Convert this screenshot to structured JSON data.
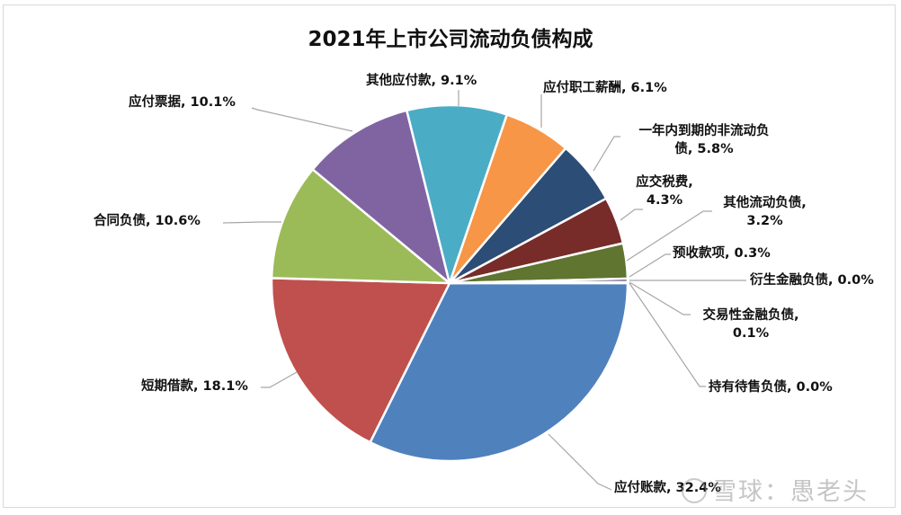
{
  "chart_data": {
    "type": "pie",
    "title": "2021年上市公司流动负债构成",
    "start_angle_deg": 0,
    "direction": "clockwise",
    "slices": [
      {
        "label": "应付账款",
        "value": 32.4,
        "color": "#4f81bd",
        "display": "应付账款, 32.4%"
      },
      {
        "label": "短期借款",
        "value": 18.1,
        "color": "#c0504d",
        "display": "短期借款, 18.1%"
      },
      {
        "label": "合同负债",
        "value": 10.6,
        "color": "#9bbb59",
        "display": "合同负债, 10.6%"
      },
      {
        "label": "应付票据",
        "value": 10.1,
        "color": "#8064a2",
        "display": "应付票据, 10.1%"
      },
      {
        "label": "其他应付款",
        "value": 9.1,
        "color": "#4bacc6",
        "display": "其他应付款, 9.1%"
      },
      {
        "label": "应付职工薪酬",
        "value": 6.1,
        "color": "#f79646",
        "display": "应付职工薪酬, 6.1%"
      },
      {
        "label": "一年内到期的非流动负债",
        "value": 5.8,
        "color": "#2c4d75",
        "display": "一年内到期的非流动负债, 5.8%"
      },
      {
        "label": "应交税费",
        "value": 4.3,
        "color": "#772c2a",
        "display": "应交税费, 4.3%"
      },
      {
        "label": "其他流动负债",
        "value": 3.2,
        "color": "#5f7530",
        "display": "其他流动负债, 3.2%"
      },
      {
        "label": "预收款项",
        "value": 0.3,
        "color": "#4d3b62",
        "display": "预收款项, 0.3%"
      },
      {
        "label": "衍生金融负债",
        "value": 0.0,
        "color": "#276a7c",
        "display": "衍生金融负债, 0.0%"
      },
      {
        "label": "交易性金融负债",
        "value": 0.1,
        "color": "#b65708",
        "display": "交易性金融负债, 0.1%"
      },
      {
        "label": "持有待售负债",
        "value": 0.0,
        "color": "#729aca",
        "display": "持有待售负债, 0.0%"
      }
    ],
    "legend": "none",
    "data_labels": "category name, percentage with leader lines"
  },
  "labels": {
    "yingfu_zhangkuan": "应付账款, 32.4%",
    "duanqi_jiekuan": "短期借款, 18.1%",
    "hetong_fuzhai": "合同负债, 10.6%",
    "yingfu_piaoju": "应付票据, 10.1%",
    "qita_yingfukuan": "其他应付款, 9.1%",
    "zhigong_xinchou": "应付职工薪酬, 6.1%",
    "yinian_line1": "一年内到期的非流动负",
    "yinian_line2": "债, 5.8%",
    "yingjiao_line1": "应交税费,",
    "yingjiao_line2": "4.3%",
    "qita_liudong_line1": "其他流动负债,",
    "qita_liudong_line2": "3.2%",
    "yushou": "预收款项, 0.3%",
    "yansheng": "衍生金融负债, 0.0%",
    "jiaoyi_line1": "交易性金融负债,",
    "jiaoyi_line2": "0.1%",
    "chiyou": "持有待售负债, 0.0%"
  },
  "watermark": "雪球：愚老头"
}
